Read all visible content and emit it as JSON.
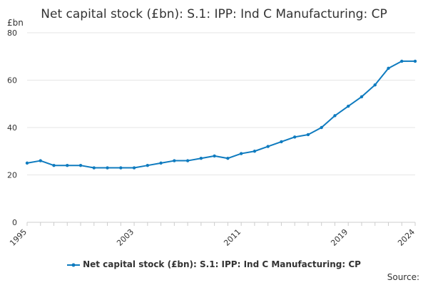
{
  "chart_data": {
    "type": "line",
    "title": "Net capital stock (£bn): S.1: IPP: Ind C Manufacturing: CP",
    "ylabel": "£bn",
    "xlabel": "",
    "ylim": [
      0,
      80
    ],
    "xlim": [
      1995,
      2024
    ],
    "y_ticks": [
      0,
      20,
      40,
      60,
      80
    ],
    "x_ticks": [
      1995,
      2003,
      2011,
      2019,
      2024
    ],
    "grid": true,
    "legend_position": "bottom",
    "color": "#0f7bbf",
    "series": [
      {
        "name": "Net capital stock (£bn): S.1: IPP: Ind C Manufacturing: CP",
        "x": [
          1995,
          1996,
          1997,
          1998,
          1999,
          2000,
          2001,
          2002,
          2003,
          2004,
          2005,
          2006,
          2007,
          2008,
          2009,
          2010,
          2011,
          2012,
          2013,
          2014,
          2015,
          2016,
          2017,
          2018,
          2019,
          2020,
          2021,
          2022,
          2023,
          2024
        ],
        "values": [
          25,
          26,
          24,
          24,
          24,
          23,
          23,
          23,
          23,
          24,
          25,
          26,
          26,
          27,
          28,
          27,
          29,
          30,
          32,
          34,
          36,
          37,
          40,
          45,
          49,
          53,
          58,
          65,
          68,
          68
        ]
      }
    ]
  },
  "footer": {
    "source_label": "Source:"
  }
}
